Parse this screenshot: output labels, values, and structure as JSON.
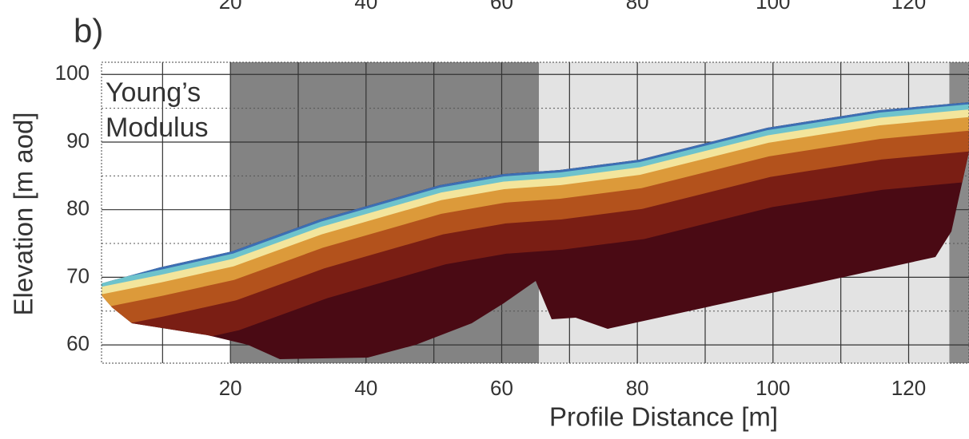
{
  "chart_data": {
    "type": "section",
    "panel_label": "b)",
    "annotation_lines": [
      "Young’s",
      "Modulus"
    ],
    "x_label": "Profile Distance [m]",
    "y_label": "Elevation [m aod]",
    "xlim": [
      1,
      128.9
    ],
    "ylim": [
      57.3,
      101.8
    ],
    "xticks": [
      20,
      40,
      60,
      80,
      100,
      120
    ],
    "yticks": [
      60,
      70,
      80,
      90,
      100
    ],
    "x_gridlines": [
      10,
      30,
      50,
      70,
      90,
      110,
      130
    ],
    "y_gridlines": [
      65,
      75,
      85,
      95
    ],
    "grid": true,
    "shaded_regions": [
      {
        "x": [
          20,
          65.5
        ],
        "color": "#838383"
      },
      {
        "x": [
          65.5,
          126
        ],
        "color": "#e3e3e3"
      },
      {
        "x": [
          126,
          128.9
        ],
        "color": "#8a8a8a"
      }
    ]
  }
}
